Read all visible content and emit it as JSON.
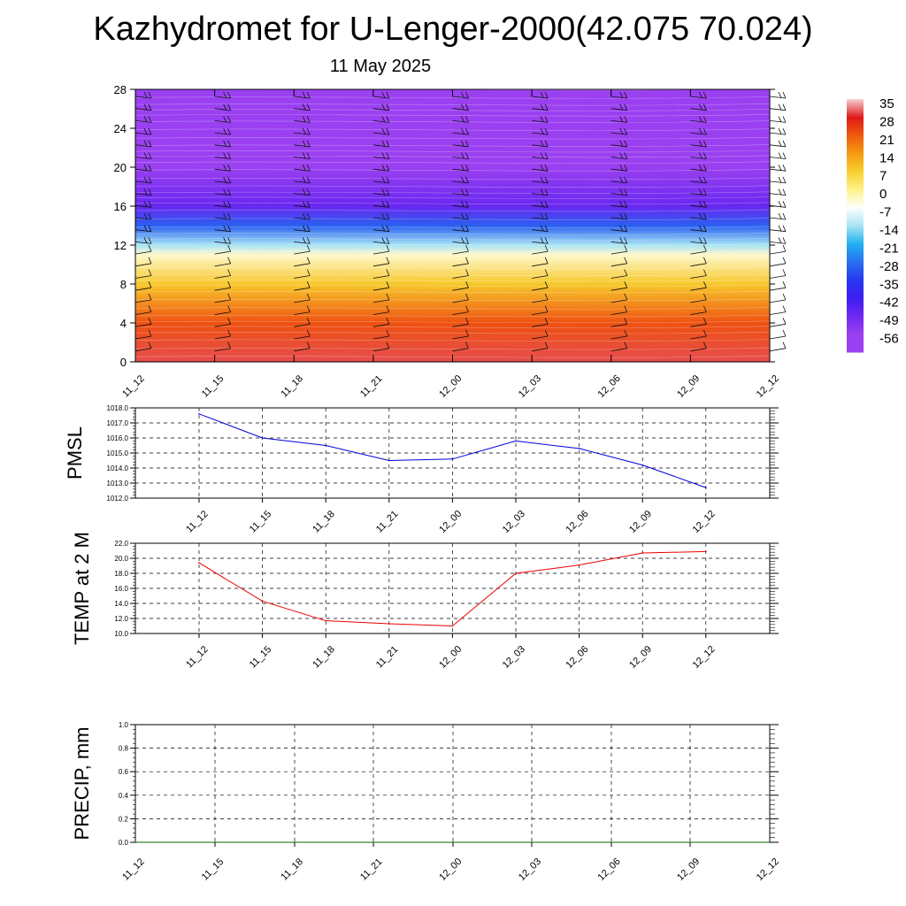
{
  "title": "Kazhydromet for U-Lenger-2000(42.075 70.024)",
  "subtitle": "11 May 2025",
  "colors": {
    "pmsl_line": "#0000dd",
    "temp_line": "#ee0000",
    "precip_line": "#006600"
  },
  "chart_data": [
    {
      "type": "heatmap",
      "name": "upper-air-temperature-cross-section",
      "x_ticks": [
        "11_12",
        "11_15",
        "11_18",
        "11_21",
        "12_00",
        "12_03",
        "12_06",
        "12_09",
        "12_12"
      ],
      "y_ticks": [
        "0",
        "4",
        "8",
        "12",
        "16",
        "20",
        "24",
        "28"
      ],
      "ylim": [
        0,
        28
      ],
      "colorbar": {
        "labels": [
          "35",
          "28",
          "21",
          "14",
          "7",
          "0",
          "-7",
          "-14",
          "-21",
          "-28",
          "-35",
          "-42",
          "-49",
          "-56"
        ],
        "colors": [
          "#f5d0d0",
          "#e01818",
          "#f05a10",
          "#f59a10",
          "#f7d030",
          "#fdf28a",
          "#ffffff",
          "#a8e4f5",
          "#20b0f0",
          "#2a70f0",
          "#2838f0",
          "#3c1ef0",
          "#7028f0",
          "#9a40f0"
        ]
      },
      "temperature_profile": [
        {
          "height": 0,
          "value": 30
        },
        {
          "height": 4,
          "value": 22
        },
        {
          "height": 8,
          "value": 8
        },
        {
          "height": 11,
          "value": -4
        },
        {
          "height": 12,
          "value": -14
        },
        {
          "height": 14,
          "value": -30
        },
        {
          "height": 16,
          "value": -48
        },
        {
          "height": 20,
          "value": -58
        },
        {
          "height": 24,
          "value": -62
        },
        {
          "height": 28,
          "value": -70
        }
      ],
      "wind_barbs": true,
      "grid": false
    },
    {
      "type": "line",
      "ylabel": "PMSL",
      "categories": [
        "11_12",
        "11_15",
        "11_18",
        "11_21",
        "12_00",
        "12_03",
        "12_06",
        "12_09",
        "12_12"
      ],
      "values": [
        1017.6,
        1016.0,
        1015.5,
        1014.5,
        1014.6,
        1015.8,
        1015.3,
        1014.2,
        1012.7
      ],
      "ylim": [
        1012.0,
        1018.0
      ],
      "y_ticks": [
        "1012.0",
        "1013.0",
        "1014.0",
        "1015.0",
        "1016.0",
        "1017.0",
        "1018.0"
      ],
      "grid": true
    },
    {
      "type": "line",
      "ylabel": "TEMP at 2 M",
      "categories": [
        "11_12",
        "11_15",
        "11_18",
        "11_21",
        "12_00",
        "12_03",
        "12_06",
        "12_09",
        "12_12"
      ],
      "values": [
        19.4,
        14.3,
        11.7,
        11.3,
        11.0,
        18.0,
        19.1,
        20.7,
        20.9
      ],
      "ylim": [
        10.0,
        22.0
      ],
      "y_ticks": [
        "10.0",
        "12.0",
        "14.0",
        "16.0",
        "18.0",
        "20.0",
        "22.0"
      ],
      "grid": true
    },
    {
      "type": "line",
      "ylabel": "PRECIP, mm",
      "categories": [
        "11_12",
        "11_15",
        "11_18",
        "11_21",
        "12_00",
        "12_03",
        "12_06",
        "12_09",
        "12_12"
      ],
      "values": [
        0,
        0,
        0,
        0,
        0,
        0,
        0,
        0,
        0
      ],
      "ylim": [
        0.0,
        1.0
      ],
      "y_ticks": [
        "0.0",
        "0.2",
        "0.4",
        "0.6",
        "0.8",
        "1.0"
      ],
      "grid": true
    }
  ]
}
